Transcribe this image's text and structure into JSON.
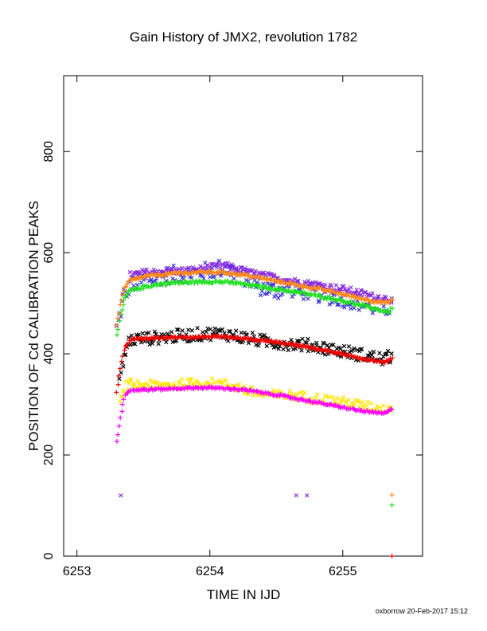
{
  "chart_data": {
    "type": "scatter",
    "title": "Gain History of JMX2, revolution 1782",
    "xlabel": "TIME IN IJD",
    "ylabel": "POSITION OF Cd CALIBRATION PEAKS",
    "xlim": [
      6252.9,
      6255.6
    ],
    "ylim": [
      0,
      950
    ],
    "xticks": [
      6253,
      6254,
      6255
    ],
    "yticks": [
      0,
      200,
      400,
      600,
      800
    ],
    "grid": false,
    "colors": {
      "blue": "#3a2fd6",
      "purple": "#8a2be2",
      "orange": "#ff8c1a",
      "green": "#22e022",
      "black": "#000000",
      "red": "#ee0000",
      "yellow": "#ffe600",
      "magenta": "#ff00ff"
    },
    "series": [
      {
        "marker": "x",
        "color": "blue",
        "x": [
          6253.3,
          6253.35,
          6253.4,
          6253.5,
          6253.6,
          6253.7,
          6253.8,
          6253.9,
          6254.0,
          6254.1,
          6254.2,
          6254.3,
          6254.4,
          6254.5,
          6254.6,
          6254.7,
          6254.8,
          6254.9,
          6255.0,
          6255.1,
          6255.2,
          6255.3,
          6255.37
        ],
        "y": [
          450,
          515,
          535,
          545,
          552,
          556,
          558,
          560,
          565,
          570,
          560,
          545,
          530,
          525,
          530,
          525,
          520,
          515,
          510,
          505,
          495,
          490,
          495
        ],
        "noise": 18
      },
      {
        "marker": "x",
        "color": "purple",
        "x": [
          6253.4,
          6253.5,
          6253.6,
          6253.7,
          6253.8,
          6253.9,
          6254.0,
          6254.1,
          6254.2,
          6254.3,
          6254.4,
          6254.5,
          6254.6,
          6254.7,
          6254.8,
          6254.9,
          6255.0,
          6255.1,
          6255.2,
          6255.3,
          6255.37
        ],
        "y": [
          555,
          560,
          562,
          563,
          564,
          566,
          570,
          575,
          568,
          560,
          555,
          550,
          545,
          540,
          537,
          532,
          528,
          522,
          515,
          510,
          508
        ],
        "noise": 7
      },
      {
        "marker": "+",
        "color": "green",
        "x": [
          6253.3,
          6253.33,
          6253.36,
          6253.4,
          6253.5,
          6253.6,
          6253.7,
          6253.8,
          6253.9,
          6254.0,
          6254.1,
          6254.2,
          6254.3,
          6254.4,
          6254.5,
          6254.6,
          6254.7,
          6254.8,
          6254.9,
          6255.0,
          6255.1,
          6255.2,
          6255.3,
          6255.34,
          6255.37
        ],
        "y": [
          435,
          480,
          510,
          525,
          532,
          537,
          540,
          541,
          542,
          543,
          542,
          540,
          536,
          532,
          528,
          524,
          520,
          515,
          510,
          505,
          498,
          492,
          485,
          482,
          490
        ],
        "noise": 3
      },
      {
        "marker": "+",
        "color": "orange",
        "x": [
          6253.3,
          6253.33,
          6253.36,
          6253.4,
          6253.5,
          6253.6,
          6253.7,
          6253.8,
          6253.9,
          6254.0,
          6254.1,
          6254.2,
          6254.3,
          6254.4,
          6254.5,
          6254.6,
          6254.7,
          6254.8,
          6254.9,
          6255.0,
          6255.1,
          6255.2,
          6255.3,
          6255.34,
          6255.37
        ],
        "y": [
          455,
          500,
          528,
          545,
          552,
          556,
          558,
          560,
          561,
          562,
          561,
          558,
          554,
          549,
          544,
          539,
          534,
          529,
          524,
          518,
          512,
          506,
          502,
          500,
          508
        ],
        "noise": 3
      },
      {
        "marker": "x",
        "color": "black",
        "x": [
          6253.32,
          6253.37,
          6253.4,
          6253.5,
          6253.6,
          6253.7,
          6253.8,
          6253.9,
          6254.0,
          6254.1,
          6254.2,
          6254.3,
          6254.4,
          6254.5,
          6254.6,
          6254.7,
          6254.8,
          6254.9,
          6255.0,
          6255.1,
          6255.2,
          6255.3,
          6255.37
        ],
        "y": [
          350,
          410,
          428,
          430,
          432,
          434,
          436,
          438,
          440,
          440,
          435,
          430,
          425,
          422,
          420,
          418,
          415,
          410,
          405,
          400,
          395,
          390,
          395
        ],
        "noise": 13
      },
      {
        "marker": "+",
        "color": "red",
        "x": [
          6253.3,
          6253.33,
          6253.36,
          6253.4,
          6253.5,
          6253.6,
          6253.7,
          6253.8,
          6253.9,
          6254.0,
          6254.1,
          6254.2,
          6254.3,
          6254.4,
          6254.5,
          6254.6,
          6254.7,
          6254.8,
          6254.9,
          6255.0,
          6255.1,
          6255.2,
          6255.3,
          6255.34,
          6255.37
        ],
        "y": [
          325,
          375,
          412,
          428,
          430,
          431,
          432,
          433,
          433,
          434,
          433,
          431,
          429,
          426,
          423,
          419,
          415,
          410,
          405,
          399,
          393,
          388,
          384,
          385,
          392
        ],
        "noise": 2
      },
      {
        "marker": "x",
        "color": "yellow",
        "x": [
          6253.32,
          6253.37,
          6253.4,
          6253.5,
          6253.6,
          6253.7,
          6253.8,
          6253.9,
          6254.0,
          6254.1,
          6254.2,
          6254.3,
          6254.4,
          6254.5,
          6254.6,
          6254.7,
          6254.8,
          6254.9,
          6255.0,
          6255.1,
          6255.2,
          6255.3,
          6255.37
        ],
        "y": [
          300,
          335,
          340,
          338,
          337,
          338,
          340,
          342,
          342,
          340,
          335,
          325,
          320,
          318,
          318,
          315,
          312,
          308,
          305,
          300,
          295,
          290,
          295
        ],
        "noise": 10
      },
      {
        "marker": "+",
        "color": "magenta",
        "x": [
          6253.3,
          6253.33,
          6253.36,
          6253.4,
          6253.5,
          6253.6,
          6253.7,
          6253.8,
          6253.9,
          6254.0,
          6254.1,
          6254.2,
          6254.3,
          6254.4,
          6254.5,
          6254.6,
          6254.7,
          6254.8,
          6254.9,
          6255.0,
          6255.1,
          6255.2,
          6255.3,
          6255.34,
          6255.37
        ],
        "y": [
          225,
          280,
          318,
          328,
          329,
          330,
          331,
          332,
          333,
          333,
          332,
          330,
          327,
          323,
          319,
          314,
          309,
          304,
          299,
          294,
          289,
          285,
          282,
          285,
          292
        ],
        "noise": 2
      },
      {
        "marker": "x",
        "color": "purple",
        "outliers": true,
        "x": [
          6253.33,
          6254.65,
          6254.73
        ],
        "y": [
          120,
          120,
          120
        ],
        "noise": 0
      },
      {
        "marker": "+",
        "color": "orange",
        "outliers": true,
        "x": [
          6255.37
        ],
        "y": [
          121
        ],
        "noise": 0
      },
      {
        "marker": "+",
        "color": "green",
        "outliers": true,
        "x": [
          6255.37
        ],
        "y": [
          101
        ],
        "noise": 0
      },
      {
        "marker": "+",
        "color": "red",
        "outliers": true,
        "x": [
          6255.37
        ],
        "y": [
          0
        ],
        "noise": 0
      }
    ]
  },
  "footer": {
    "stamp": "oxborrow 20-Feb-2017 15:12"
  }
}
